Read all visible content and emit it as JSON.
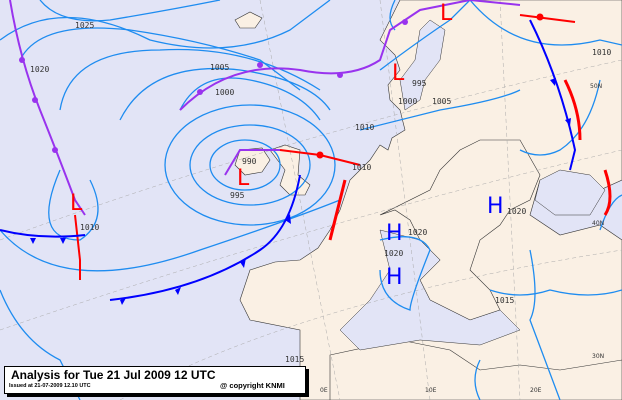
{
  "caption": {
    "title": "Analysis for Tue 21 Jul 2009 12 UTC",
    "issued": "Issued at 21-07-2009 12.10 UTC",
    "copyright": "@ copyright KNMI"
  },
  "isobar_labels": [
    "1025",
    "1020",
    "1005",
    "1000",
    "995",
    "990",
    "1010",
    "995",
    "1000",
    "1005",
    "1010",
    "1010",
    "1020",
    "1020",
    "1020",
    "1015",
    "1015",
    "1010"
  ],
  "pressure_centers": [
    {
      "type": "L",
      "label": "L"
    },
    {
      "type": "L",
      "label": "L"
    },
    {
      "type": "L",
      "label": "L"
    },
    {
      "type": "L",
      "label": "L"
    },
    {
      "type": "H",
      "label": "H"
    },
    {
      "type": "H",
      "label": "H"
    },
    {
      "type": "H",
      "label": "H"
    }
  ],
  "grid_labels": {
    "lat_50": "50N",
    "lat_40": "40N",
    "lat_30": "30N",
    "lon_0": "0E",
    "lon_10": "10E",
    "lon_20": "20E"
  },
  "colors": {
    "sea": "#e2e4f6",
    "land": "#faf0e4",
    "isobar": "#1e8cf0",
    "cold_front": "#0000ff",
    "warm_front": "#ff0000",
    "occluded_front": "#9933ee",
    "low": "#ff0000",
    "high": "#0000ff"
  }
}
